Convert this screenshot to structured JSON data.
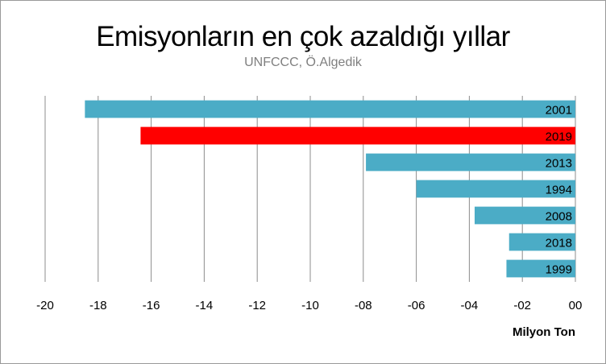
{
  "chart_data": {
    "type": "bar",
    "orientation": "horizontal",
    "title": "Emisyonların en çok azaldığı yıllar",
    "subtitle": "UNFCCC, Ö.Algedik",
    "xlabel": "Milyon Ton",
    "ylabel": "",
    "xlim": [
      -20,
      0
    ],
    "x_tick_labels": [
      "-20",
      "-18",
      "-16",
      "-14",
      "-12",
      "-10",
      "-08",
      "-06",
      "-04",
      "-02",
      "00"
    ],
    "x_tick_values": [
      -20,
      -18,
      -16,
      -14,
      -12,
      -10,
      -8,
      -6,
      -4,
      -2,
      0
    ],
    "grid": "vertical",
    "legend": "none",
    "categories": [
      "2001",
      "2019",
      "2013",
      "1994",
      "2008",
      "2018",
      "1999"
    ],
    "values": [
      -18.5,
      -16.4,
      -7.9,
      -6.0,
      -3.8,
      -2.5,
      -2.6
    ],
    "colors": [
      "#4bacc6",
      "#ff0000",
      "#4bacc6",
      "#4bacc6",
      "#4bacc6",
      "#4bacc6",
      "#4bacc6"
    ]
  }
}
